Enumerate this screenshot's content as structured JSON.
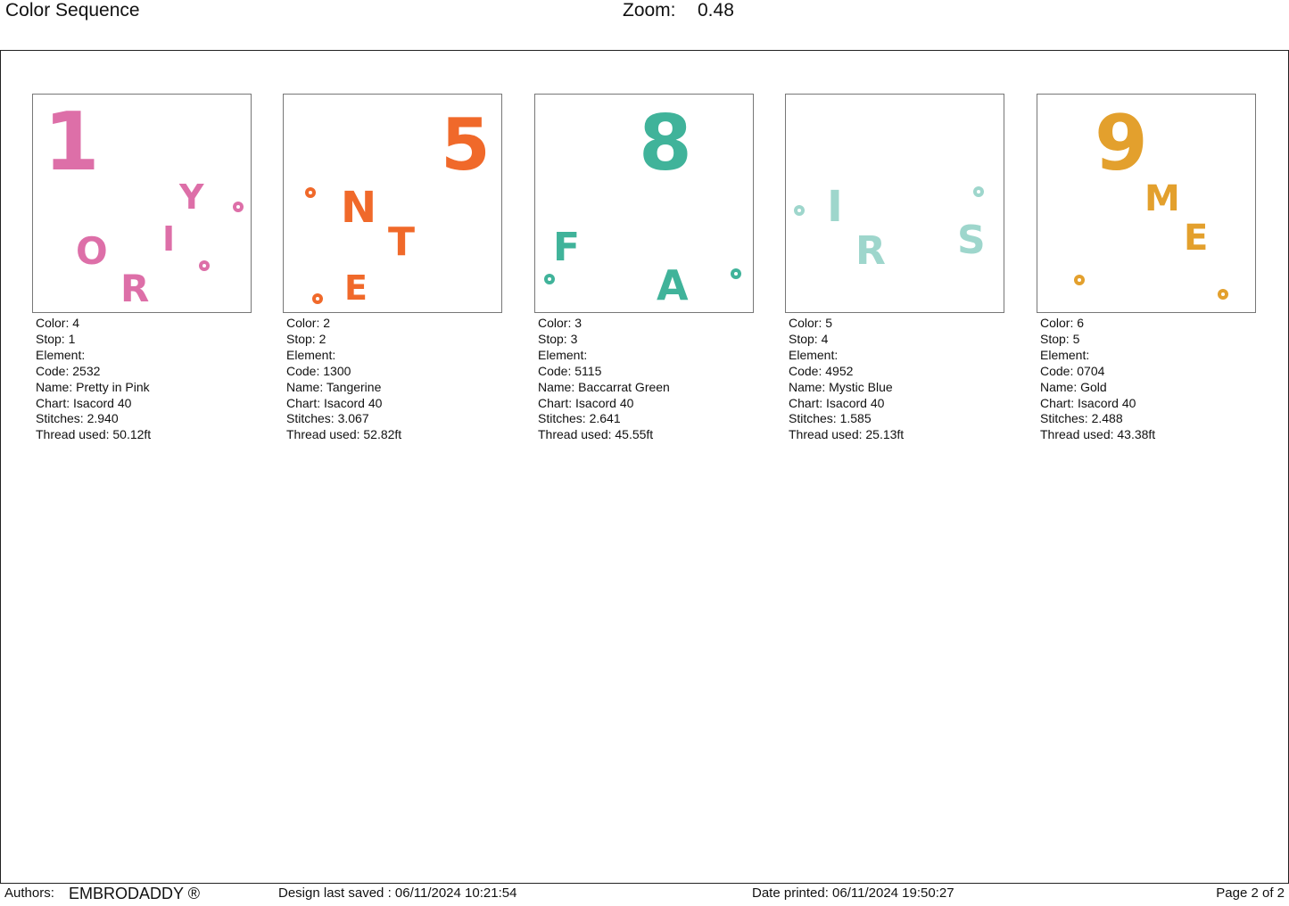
{
  "header": {
    "title": "Color Sequence",
    "zoom_label": "Zoom:",
    "zoom_value": "0.48"
  },
  "cards": [
    {
      "color": "Color: 4",
      "stop": "Stop: 1",
      "element": "Element:",
      "code": "Code: 2532",
      "name": "Name: Pretty in Pink",
      "chart": "Chart: Isacord 40",
      "stitches": "Stitches: 2.940",
      "thread": "Thread used: 50.12ft",
      "hex": "#dd6fa8",
      "glyphs": [
        "1",
        "Y",
        "I",
        "O",
        "R"
      ]
    },
    {
      "color": "Color: 2",
      "stop": "Stop: 2",
      "element": "Element:",
      "code": "Code: 1300",
      "name": "Name: Tangerine",
      "chart": "Chart: Isacord 40",
      "stitches": "Stitches: 3.067",
      "thread": "Thread used: 52.82ft",
      "hex": "#f0692a",
      "glyphs": [
        "5",
        "N",
        "T",
        "E"
      ]
    },
    {
      "color": "Color: 3",
      "stop": "Stop: 3",
      "element": "Element:",
      "code": "Code: 5115",
      "name": "Name: Baccarrat Green",
      "chart": "Chart: Isacord 40",
      "stitches": "Stitches: 2.641",
      "thread": "Thread used: 45.55ft",
      "hex": "#40b39a",
      "glyphs": [
        "8",
        "F",
        "A"
      ]
    },
    {
      "color": "Color: 5",
      "stop": "Stop: 4",
      "element": "Element:",
      "code": "Code: 4952",
      "name": "Name: Mystic Blue",
      "chart": "Chart: Isacord 40",
      "stitches": "Stitches: 1.585",
      "thread": "Thread used: 25.13ft",
      "hex": "#9ed6cc",
      "glyphs": [
        "I",
        "R",
        "S"
      ]
    },
    {
      "color": "Color: 6",
      "stop": "Stop: 5",
      "element": "Element:",
      "code": "Code: 0704",
      "name": "Name: Gold",
      "chart": "Chart: Isacord 40",
      "stitches": "Stitches: 2.488",
      "thread": "Thread used: 43.38ft",
      "hex": "#e3a02d",
      "glyphs": [
        "9",
        "M",
        "E"
      ]
    }
  ],
  "footer": {
    "authors_label": "Authors:",
    "authors_value": "EMBRODADDY ®",
    "saved": "Design last saved : 06/11/2024 10:21:54",
    "printed": "Date printed: 06/11/2024 19:50:27",
    "page": "Page 2 of 2"
  }
}
